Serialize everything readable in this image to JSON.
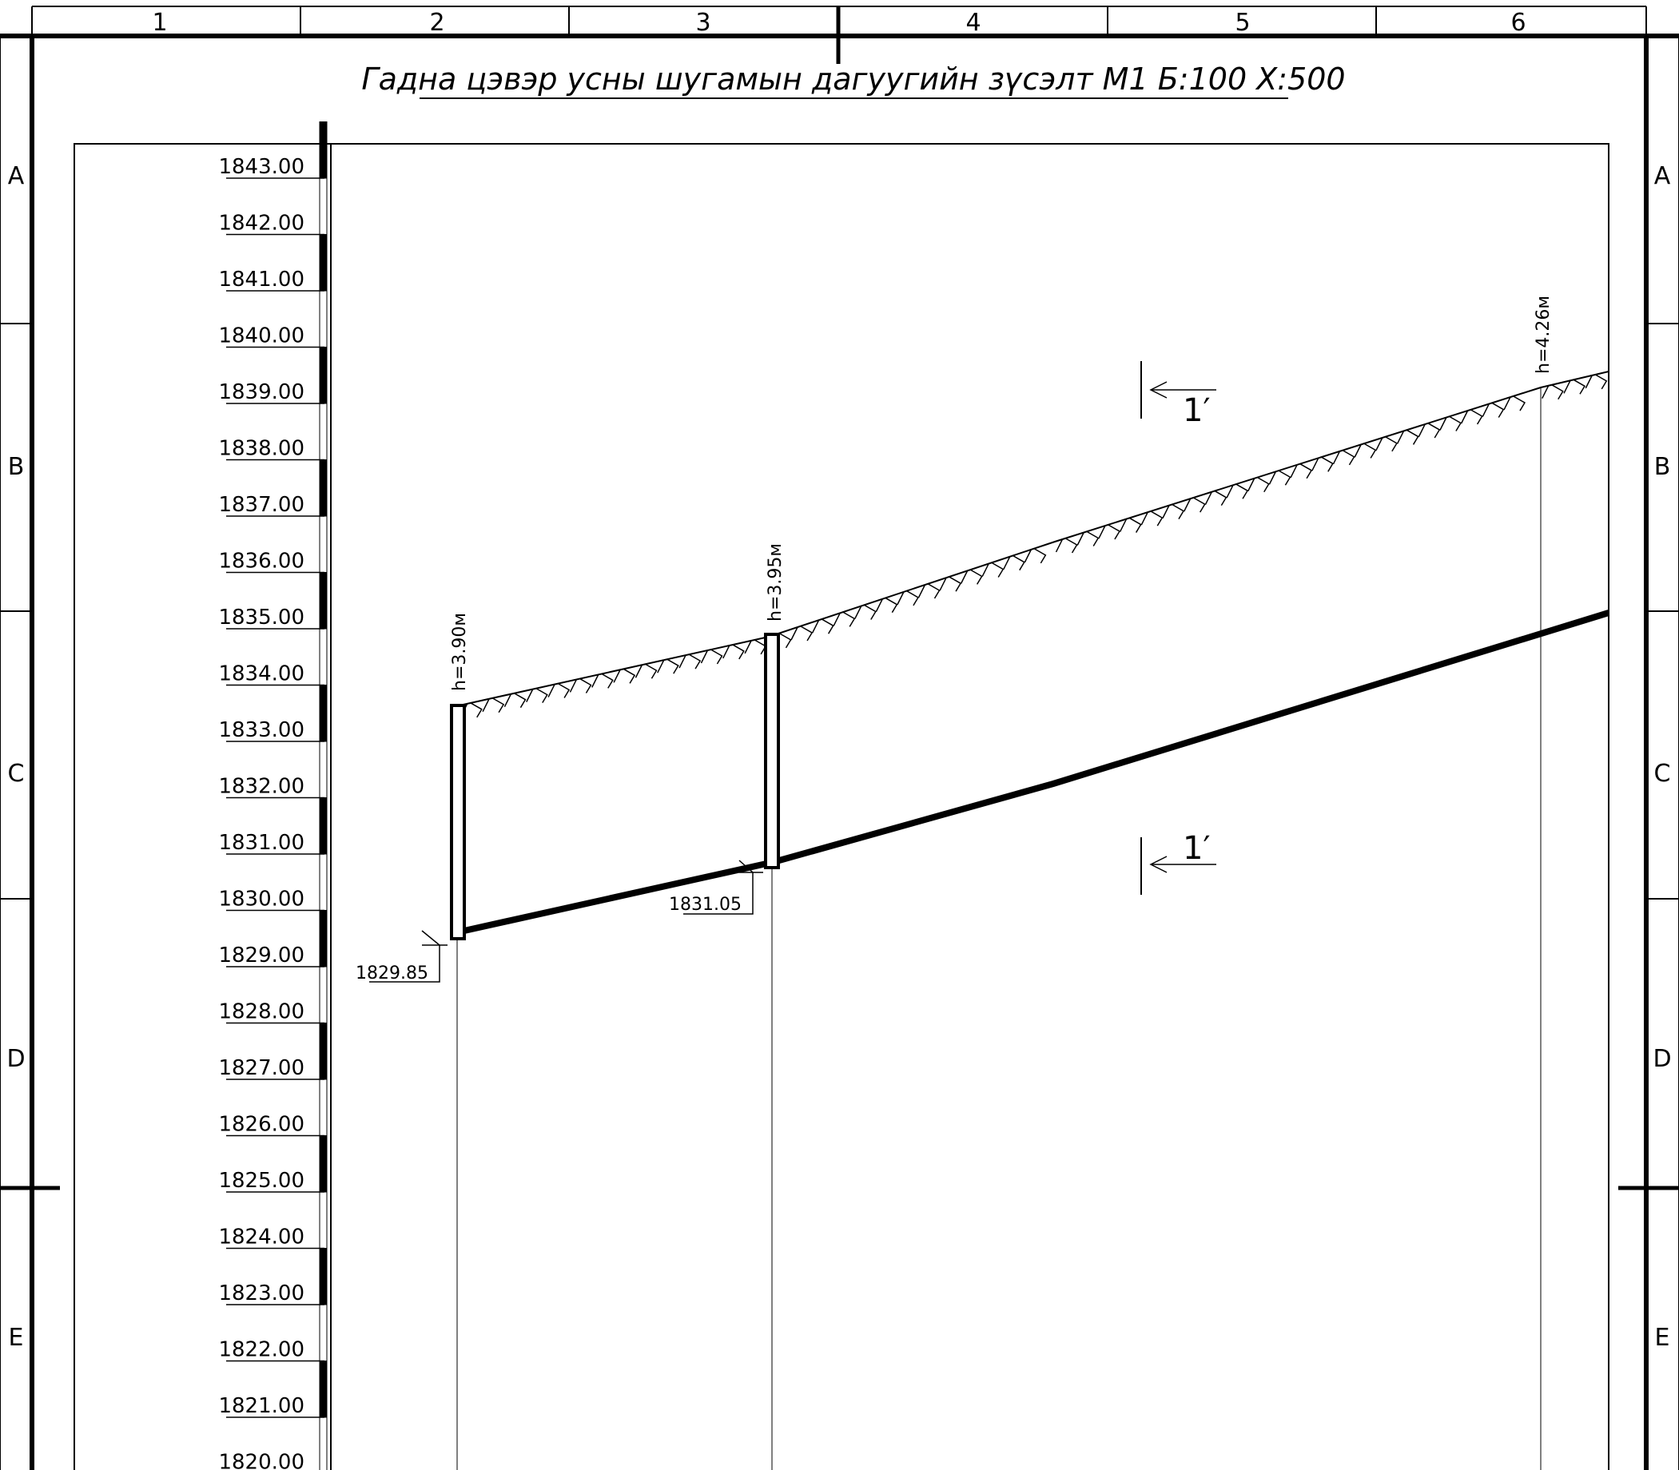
{
  "title": "Гадна цэвэр усны шугамын дагуугийн зүсэлт М1 Б:100 Х:500",
  "frame": {
    "columns": [
      "1",
      "2",
      "3",
      "4",
      "5",
      "6"
    ],
    "rows": [
      "A",
      "B",
      "C",
      "D",
      "E"
    ]
  },
  "elevation_scale": {
    "labels": [
      "1843.00",
      "1842.00",
      "1841.00",
      "1840.00",
      "1839.00",
      "1838.00",
      "1837.00",
      "1836.00",
      "1835.00",
      "1834.00",
      "1833.00",
      "1832.00",
      "1831.00",
      "1830.00",
      "1829.00",
      "1828.00",
      "1827.00",
      "1826.00",
      "1825.00",
      "1824.00",
      "1823.00",
      "1822.00",
      "1821.00",
      "1820.00"
    ]
  },
  "wells": [
    {
      "depth_label": "h=3.90м",
      "invert_label": "1829.85"
    },
    {
      "depth_label": "h=3.95м",
      "invert_label": "1831.05"
    },
    {
      "depth_label": "h=4.26м"
    }
  ],
  "section_marks": [
    {
      "label": "1′"
    },
    {
      "label": "1′"
    }
  ]
}
